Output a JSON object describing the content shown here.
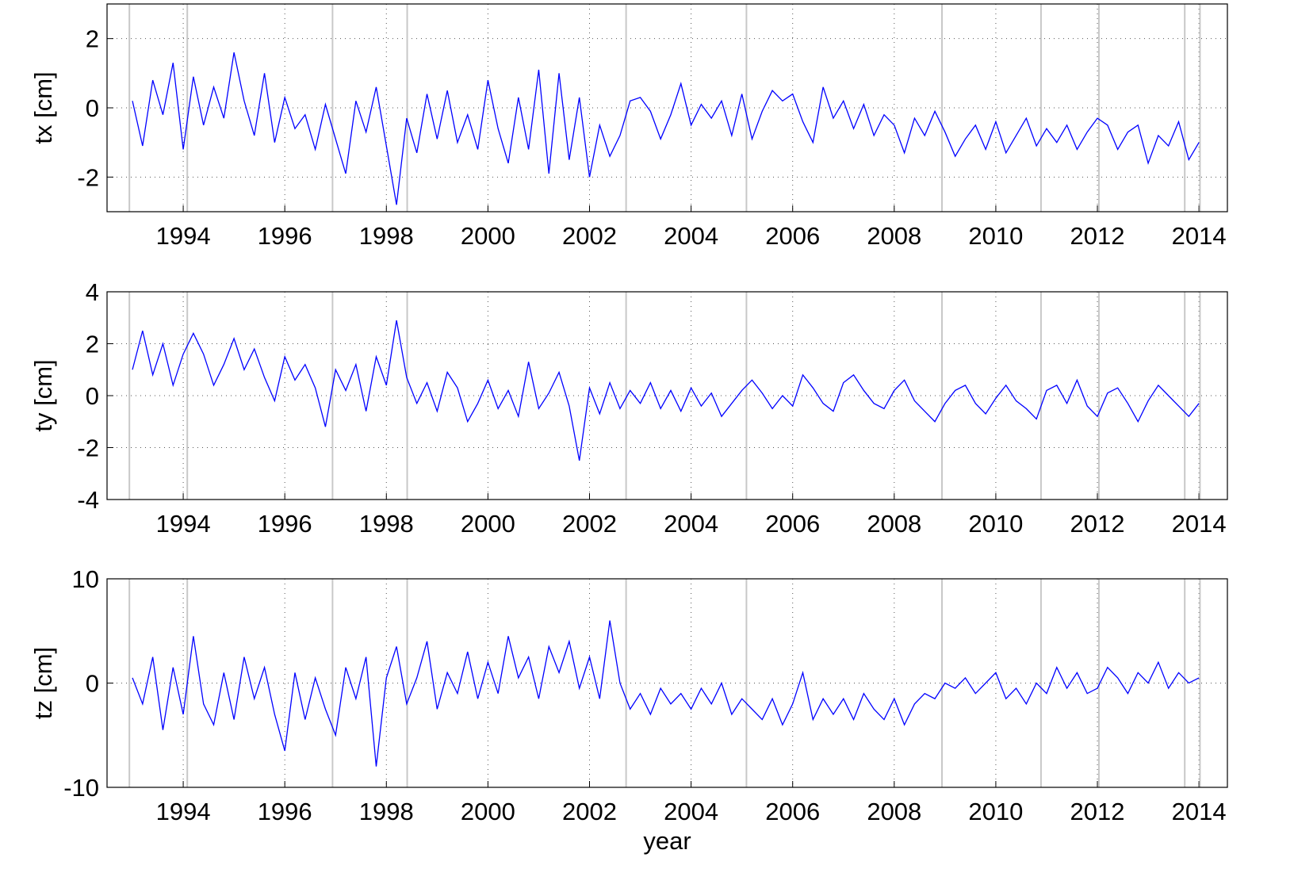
{
  "chart_data": [
    {
      "type": "line",
      "ylabel": "tx [cm]",
      "color": "#0000ff",
      "grid": true,
      "vline_color": "#c8c8c8",
      "xlim": [
        1992.5,
        2014.56
      ],
      "xticks": [
        1994,
        1996,
        1998,
        2000,
        2002,
        2004,
        2006,
        2008,
        2010,
        2012,
        2014
      ],
      "ylim": [
        -3,
        3
      ],
      "yticks": [
        -2,
        0,
        2
      ],
      "vlines": [
        1992.94,
        1994.08,
        1996.94,
        1998.41,
        2002.72,
        2005.09,
        2008.94,
        2010.89,
        2012.03,
        2013.72,
        2014.02
      ],
      "x": [
        1993.0,
        1993.2,
        1993.4,
        1993.6,
        1993.8,
        1994.0,
        1994.2,
        1994.4,
        1994.6,
        1994.8,
        1995.0,
        1995.2,
        1995.4,
        1995.6,
        1995.8,
        1996.0,
        1996.2,
        1996.4,
        1996.6,
        1996.8,
        1997.0,
        1997.2,
        1997.4,
        1997.6,
        1997.8,
        1998.0,
        1998.2,
        1998.4,
        1998.6,
        1998.8,
        1999.0,
        1999.2,
        1999.4,
        1999.6,
        1999.8,
        2000.0,
        2000.2,
        2000.4,
        2000.6,
        2000.8,
        2001.0,
        2001.2,
        2001.4,
        2001.6,
        2001.8,
        2002.0,
        2002.2,
        2002.4,
        2002.6,
        2002.8,
        2003.0,
        2003.2,
        2003.4,
        2003.6,
        2003.8,
        2004.0,
        2004.2,
        2004.4,
        2004.6,
        2004.8,
        2005.0,
        2005.2,
        2005.4,
        2005.6,
        2005.8,
        2006.0,
        2006.2,
        2006.4,
        2006.6,
        2006.8,
        2007.0,
        2007.2,
        2007.4,
        2007.6,
        2007.8,
        2008.0,
        2008.2,
        2008.4,
        2008.6,
        2008.8,
        2009.0,
        2009.2,
        2009.4,
        2009.6,
        2009.8,
        2010.0,
        2010.2,
        2010.4,
        2010.6,
        2010.8,
        2011.0,
        2011.2,
        2011.4,
        2011.6,
        2011.8,
        2012.0,
        2012.2,
        2012.4,
        2012.6,
        2012.8,
        2013.0,
        2013.2,
        2013.4,
        2013.6,
        2013.8,
        2014.0
      ],
      "values": [
        0.2,
        -1.1,
        0.8,
        -0.2,
        1.3,
        -1.2,
        0.9,
        -0.5,
        0.6,
        -0.3,
        1.6,
        0.2,
        -0.8,
        1.0,
        -1.0,
        0.3,
        -0.6,
        -0.2,
        -1.2,
        0.1,
        -0.9,
        -1.9,
        0.2,
        -0.7,
        0.6,
        -1.1,
        -2.8,
        -0.3,
        -1.3,
        0.4,
        -0.9,
        0.5,
        -1.0,
        -0.2,
        -1.2,
        0.8,
        -0.6,
        -1.6,
        0.3,
        -1.2,
        1.1,
        -1.9,
        1.0,
        -1.5,
        0.3,
        -2.0,
        -0.5,
        -1.4,
        -0.8,
        0.2,
        0.3,
        -0.1,
        -0.9,
        -0.2,
        0.7,
        -0.5,
        0.1,
        -0.3,
        0.2,
        -0.8,
        0.4,
        -0.9,
        -0.1,
        0.5,
        0.2,
        0.4,
        -0.4,
        -1.0,
        0.6,
        -0.3,
        0.2,
        -0.6,
        0.1,
        -0.8,
        -0.2,
        -0.5,
        -1.3,
        -0.3,
        -0.8,
        -0.1,
        -0.7,
        -1.4,
        -0.9,
        -0.5,
        -1.2,
        -0.4,
        -1.3,
        -0.8,
        -0.3,
        -1.1,
        -0.6,
        -1.0,
        -0.5,
        -1.2,
        -0.7,
        -0.3,
        -0.5,
        -1.2,
        -0.7,
        -0.5,
        -1.6,
        -0.8,
        -1.1,
        -0.4,
        -1.5,
        -1.0
      ]
    },
    {
      "type": "line",
      "ylabel": "ty [cm]",
      "color": "#0000ff",
      "grid": true,
      "vline_color": "#c8c8c8",
      "xlim": [
        1992.5,
        2014.56
      ],
      "xticks": [
        1994,
        1996,
        1998,
        2000,
        2002,
        2004,
        2006,
        2008,
        2010,
        2012,
        2014
      ],
      "ylim": [
        -4,
        4
      ],
      "yticks": [
        -4,
        -2,
        0,
        2,
        4
      ],
      "vlines": [
        1992.94,
        1994.08,
        1996.94,
        1998.41,
        2002.72,
        2005.09,
        2008.94,
        2010.89,
        2012.03,
        2013.72,
        2014.02
      ],
      "x": [
        1993.0,
        1993.2,
        1993.4,
        1993.6,
        1993.8,
        1994.0,
        1994.2,
        1994.4,
        1994.6,
        1994.8,
        1995.0,
        1995.2,
        1995.4,
        1995.6,
        1995.8,
        1996.0,
        1996.2,
        1996.4,
        1996.6,
        1996.8,
        1997.0,
        1997.2,
        1997.4,
        1997.6,
        1997.8,
        1998.0,
        1998.2,
        1998.4,
        1998.6,
        1998.8,
        1999.0,
        1999.2,
        1999.4,
        1999.6,
        1999.8,
        2000.0,
        2000.2,
        2000.4,
        2000.6,
        2000.8,
        2001.0,
        2001.2,
        2001.4,
        2001.6,
        2001.8,
        2002.0,
        2002.2,
        2002.4,
        2002.6,
        2002.8,
        2003.0,
        2003.2,
        2003.4,
        2003.6,
        2003.8,
        2004.0,
        2004.2,
        2004.4,
        2004.6,
        2004.8,
        2005.0,
        2005.2,
        2005.4,
        2005.6,
        2005.8,
        2006.0,
        2006.2,
        2006.4,
        2006.6,
        2006.8,
        2007.0,
        2007.2,
        2007.4,
        2007.6,
        2007.8,
        2008.0,
        2008.2,
        2008.4,
        2008.6,
        2008.8,
        2009.0,
        2009.2,
        2009.4,
        2009.6,
        2009.8,
        2010.0,
        2010.2,
        2010.4,
        2010.6,
        2010.8,
        2011.0,
        2011.2,
        2011.4,
        2011.6,
        2011.8,
        2012.0,
        2012.2,
        2012.4,
        2012.6,
        2012.8,
        2013.0,
        2013.2,
        2013.4,
        2013.6,
        2013.8,
        2014.0
      ],
      "values": [
        1.0,
        2.5,
        0.8,
        2.0,
        0.4,
        1.6,
        2.4,
        1.6,
        0.4,
        1.2,
        2.2,
        1.0,
        1.8,
        0.7,
        -0.2,
        1.5,
        0.6,
        1.2,
        0.3,
        -1.2,
        1.0,
        0.2,
        1.2,
        -0.6,
        1.5,
        0.4,
        2.9,
        0.7,
        -0.3,
        0.5,
        -0.6,
        0.9,
        0.3,
        -1.0,
        -0.3,
        0.6,
        -0.5,
        0.2,
        -0.8,
        1.3,
        -0.5,
        0.1,
        0.9,
        -0.4,
        -2.5,
        0.3,
        -0.7,
        0.5,
        -0.5,
        0.2,
        -0.3,
        0.5,
        -0.5,
        0.2,
        -0.6,
        0.3,
        -0.4,
        0.1,
        -0.8,
        -0.3,
        0.2,
        0.6,
        0.1,
        -0.5,
        0.0,
        -0.4,
        0.8,
        0.3,
        -0.3,
        -0.6,
        0.5,
        0.8,
        0.2,
        -0.3,
        -0.5,
        0.2,
        0.6,
        -0.2,
        -0.6,
        -1.0,
        -0.3,
        0.2,
        0.4,
        -0.3,
        -0.7,
        -0.1,
        0.4,
        -0.2,
        -0.5,
        -0.9,
        0.2,
        0.4,
        -0.3,
        0.6,
        -0.4,
        -0.8,
        0.1,
        0.3,
        -0.3,
        -1.0,
        -0.2,
        0.4,
        0.0,
        -0.4,
        -0.8,
        -0.3
      ]
    },
    {
      "type": "line",
      "ylabel": "tz [cm]",
      "xlabel": "year",
      "color": "#0000ff",
      "grid": true,
      "vline_color": "#c8c8c8",
      "xlim": [
        1992.5,
        2014.56
      ],
      "xticks": [
        1994,
        1996,
        1998,
        2000,
        2002,
        2004,
        2006,
        2008,
        2010,
        2012,
        2014
      ],
      "ylim": [
        -10,
        10
      ],
      "yticks": [
        -10,
        0,
        10
      ],
      "vlines": [
        1992.94,
        1994.08,
        1996.94,
        1998.41,
        2002.72,
        2005.09,
        2008.94,
        2010.89,
        2012.03,
        2013.72,
        2014.02
      ],
      "x": [
        1993.0,
        1993.2,
        1993.4,
        1993.6,
        1993.8,
        1994.0,
        1994.2,
        1994.4,
        1994.6,
        1994.8,
        1995.0,
        1995.2,
        1995.4,
        1995.6,
        1995.8,
        1996.0,
        1996.2,
        1996.4,
        1996.6,
        1996.8,
        1997.0,
        1997.2,
        1997.4,
        1997.6,
        1997.8,
        1998.0,
        1998.2,
        1998.4,
        1998.6,
        1998.8,
        1999.0,
        1999.2,
        1999.4,
        1999.6,
        1999.8,
        2000.0,
        2000.2,
        2000.4,
        2000.6,
        2000.8,
        2001.0,
        2001.2,
        2001.4,
        2001.6,
        2001.8,
        2002.0,
        2002.2,
        2002.4,
        2002.6,
        2002.8,
        2003.0,
        2003.2,
        2003.4,
        2003.6,
        2003.8,
        2004.0,
        2004.2,
        2004.4,
        2004.6,
        2004.8,
        2005.0,
        2005.2,
        2005.4,
        2005.6,
        2005.8,
        2006.0,
        2006.2,
        2006.4,
        2006.6,
        2006.8,
        2007.0,
        2007.2,
        2007.4,
        2007.6,
        2007.8,
        2008.0,
        2008.2,
        2008.4,
        2008.6,
        2008.8,
        2009.0,
        2009.2,
        2009.4,
        2009.6,
        2009.8,
        2010.0,
        2010.2,
        2010.4,
        2010.6,
        2010.8,
        2011.0,
        2011.2,
        2011.4,
        2011.6,
        2011.8,
        2012.0,
        2012.2,
        2012.4,
        2012.6,
        2012.8,
        2013.0,
        2013.2,
        2013.4,
        2013.6,
        2013.8,
        2014.0
      ],
      "values": [
        0.5,
        -2.0,
        2.5,
        -4.5,
        1.5,
        -3.0,
        4.5,
        -2.0,
        -4.0,
        1.0,
        -3.5,
        2.5,
        -1.5,
        1.5,
        -3.0,
        -6.5,
        1.0,
        -3.5,
        0.5,
        -2.5,
        -5.0,
        1.5,
        -1.5,
        2.5,
        -8.0,
        0.5,
        3.5,
        -2.0,
        0.5,
        4.0,
        -2.5,
        1.0,
        -1.0,
        3.0,
        -1.5,
        2.0,
        -1.0,
        4.5,
        0.5,
        2.5,
        -1.5,
        3.5,
        1.0,
        4.0,
        -0.5,
        2.5,
        -1.5,
        6.0,
        0.0,
        -2.5,
        -1.0,
        -3.0,
        -0.5,
        -2.0,
        -1.0,
        -2.5,
        -0.5,
        -2.0,
        0.0,
        -3.0,
        -1.5,
        -2.5,
        -3.5,
        -1.5,
        -4.0,
        -2.0,
        1.0,
        -3.5,
        -1.5,
        -3.0,
        -1.5,
        -3.5,
        -1.0,
        -2.5,
        -3.5,
        -1.5,
        -4.0,
        -2.0,
        -1.0,
        -1.5,
        0.0,
        -0.5,
        0.5,
        -1.0,
        0.0,
        1.0,
        -1.5,
        -0.5,
        -2.0,
        0.0,
        -1.0,
        1.5,
        -0.5,
        1.0,
        -1.0,
        -0.5,
        1.5,
        0.5,
        -1.0,
        1.0,
        0.0,
        2.0,
        -0.5,
        1.0,
        0.0,
        0.5
      ]
    }
  ]
}
